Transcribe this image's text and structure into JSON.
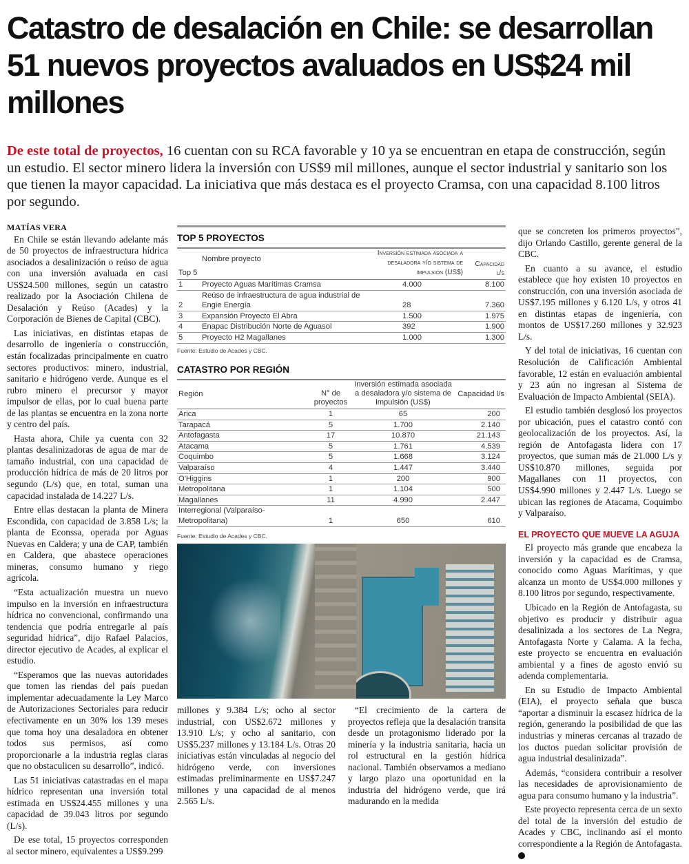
{
  "headline": "Catastro de desalación en Chile: se desarrollan 51 nuevos proyectos avaluados en US$24 mil millones",
  "lead": {
    "kicker": "De este total de proyectos,",
    "text": " 16 cuentan con su RCA favorable y 10 ya se encuentran en etapa de construcción, según un estudio. El sector minero lidera la inversión con US$9 mil millones, aunque el sector industrial y sanitario son los que tienen la mayor capacidad. La iniciativa que más destaca es el proyecto Cramsa, con una capacidad 8.100 litros por segundo."
  },
  "byline": "MATÍAS VERA",
  "column1": [
    "En Chile se están llevando adelante más de 50 proyectos de infraestructura hídrica asociados a desalinización o reúso de agua con una inversión avaluada en casi US$24.500 millones, según un catastro realizado por la Asociación Chilena de Desalación y Reúso (Acades) y la Corporación de Bienes de Capital (CBC).",
    "Las iniciativas, en distintas etapas de desarrollo de ingeniería o construcción, están focalizadas principalmente en cuatro sectores productivos: minero, industrial, sanitario e hidrógeno verde. Aunque es el rubro minero el precursor y mayor impulsor de ellas, por lo cual buena parte de las plantas se encuentra en la zona norte y centro del país.",
    "Hasta ahora, Chile ya cuenta con 32 plantas desalinizadoras de agua de mar de tamaño industrial, con una capacidad de producción hídrica de más de 20 litros por segundo (L/s) que, en total, suman una capacidad instalada de 14.227 L/s.",
    "Entre ellas destacan la planta de Minera Escondida, con capacidad de 3.858 L/s; la planta de Econssa, operada por Aguas Nuevas en Caldera; y una de CAP, también en Caldera, que abastece operaciones mineras, consumo humano y riego agrícola.",
    "“Esta actualización muestra un nuevo impulso en la inversión en infraestructura hídrica no convencional, confirmando una tendencia que podría entregarle al país seguridad hídrica”, dijo Rafael Palacios, director ejecutivo de Acades, al explicar el estudio.",
    "“Esperamos que las nuevas autoridades que tomen las riendas del país puedan implementar adecuadamente la Ley Marco de Autorizaciones Sectoriales para reducir efectivamente en un 30% los 139 meses que toma hoy una desaladora en obtener todos sus permisos, así como proporcionarle a la industria reglas claras que no obstaculicen su desarrollo”, indicó.",
    "Las 51 iniciativas catastradas en el mapa hídrico representan una inversión total estimada en US$24.455 millones y una capacidad de 39.043 litros por segundo (L/s).",
    "De ese total, 15 proyectos corresponden al sector minero, equivalentes a US$9.299"
  ],
  "column2a": "millones y 9.384 L/s; ocho al sector industrial, con US$2.672 millones y 13.910 L/s; y ocho al sanitario, con US$5.237 millones y 13.184 L/s. Otras 20 iniciativas están vinculadas al negocio del hidrógeno verde, con inversiones estimadas preliminarmente en US$7.247 millones y una capacidad de al menos 2.565 L/s.",
  "column2b": "“El crecimiento de la cartera de proyectos refleja que la desalación transita desde un protagonismo liderado por la minería y la industria sanitaria, hacia un rol estructural en la gestión hídrica nacional. También observamos a mediano y largo plazo una oportunidad en la industria del hidrógeno verde, que irá madurando en la medida",
  "column3": [
    "que se concreten los primeros proyectos”, dijo Orlando Castillo, gerente general de la CBC.",
    "En cuanto a su avance, el estudio establece que hoy existen 10 proyectos en construcción, con una inversión asociada de US$7.195 millones y 6.120 L/s, y otros 41 en distintas etapas de ingeniería, con montos de US$17.260 millones y 32.923 L/s.",
    "Y del total de iniciativas, 16 cuentan con Resolución de Calificación Ambiental favorable, 12 están en evaluación ambiental y 23 aún no ingresan al Sistema de Evaluación de Impacto Ambiental (SEIA).",
    "El estudio también desglosó los proyectos por ubicación, pues el catastro contó con geolocalización de los proyectos. Así, la región de Antofagasta lidera con 17 proyectos, que suman más de 21.000 L/s y US$10.870 millones, seguida por Magallanes con 11 proyectos, con US$4.990 millones y 2.447 L/s. Luego se ubican las regiones de Atacama, Coquimbo y Valparaíso."
  ],
  "subheading": "EL PROYECTO QUE MUEVE LA AGUJA",
  "column3b": [
    "El proyecto más grande que encabeza la inversión y la capacidad es de Cramsa, conocido como Aguas Marítimas, y que alcanza un monto de US$4.000 millones y 8.100 litros por segundo, respectivamente.",
    "Ubicado en la Región de Antofagasta, su objetivo es producir y distribuir agua desalinizada a los sectores de La Negra, Antofagasta Norte y Calama. A la fecha, este proyecto se encuentra en evaluación ambiental y a fines de agosto envió su adenda complementaria.",
    "En su Estudio de Impacto Ambiental (EIA), el proyecto señala que busca “aportar a disminuir la escasez hídrica de la región, generando la posibilidad de que las industrias y mineras cercanas al trazado de los ductos puedan solicitar provisión de agua industrial desalinizada”.",
    "Además, “considera contribuir a resolver las necesidades de aprovisionamiento de agua para consumo humano y la industria”.",
    "Este proyecto representa cerca de un sexto del total de la inversión del estudio de Acades y CBC, inclinando así el monto correspondiente a la Región de Antofagasta."
  ],
  "top5": {
    "title": "TOP 5 PROYECTOS",
    "headers": [
      "Top 5",
      "Nombre proyecto",
      "Inversión estimada asociada a desaladora y/o sistema de impulsión (US$)",
      "Capacidad l/s"
    ],
    "rows": [
      [
        "1",
        "Proyecto Aguas Marítimas Cramsa",
        "4.000",
        "8.100"
      ],
      [
        "2",
        "Reúso de infraestructura de agua industrial de Engie Energía",
        "28",
        "7.360"
      ],
      [
        "3",
        "Expansión Proyecto El Abra",
        "1.500",
        "1.975"
      ],
      [
        "4",
        "Enapac Distribución Norte de Aguasol",
        "392",
        "1.900"
      ],
      [
        "5",
        "Proyecto H2 Magallanes",
        "1.000",
        "1.300"
      ]
    ],
    "source": "Fuente: Estudio de Acades y CBC."
  },
  "regions": {
    "title": "CATASTRO POR REGIÓN",
    "headers": [
      "Región",
      "N° de proyectos",
      "Inversión estimada asociada a desaladora y/o sistema de impulsión (US$)",
      "Capacidad l/s"
    ],
    "rows": [
      [
        "Arica",
        "1",
        "65",
        "200"
      ],
      [
        "Tarapacá",
        "5",
        "1.700",
        "2.140"
      ],
      [
        "Antofagasta",
        "17",
        "10.870",
        "21.143"
      ],
      [
        "Atacama",
        "5",
        "1.761",
        "4.539"
      ],
      [
        "Coquimbo",
        "5",
        "1.668",
        "3.124"
      ],
      [
        "Valparaíso",
        "4",
        "1.447",
        "3.440"
      ],
      [
        "O'Higgins",
        "1",
        "200",
        "900"
      ],
      [
        "Metropolitana",
        "1",
        "1.104",
        "500"
      ],
      [
        "Magallanes",
        "11",
        "4.990",
        "2.447"
      ],
      [
        "Interregional (Valparaíso- Metropolitana)",
        "1",
        "650",
        "610"
      ]
    ],
    "source": "Fuente: Estudio de Acades y CBC."
  },
  "colors": {
    "accent": "#c4162a",
    "sea": "#145468",
    "roof": "#3a8fa8"
  }
}
